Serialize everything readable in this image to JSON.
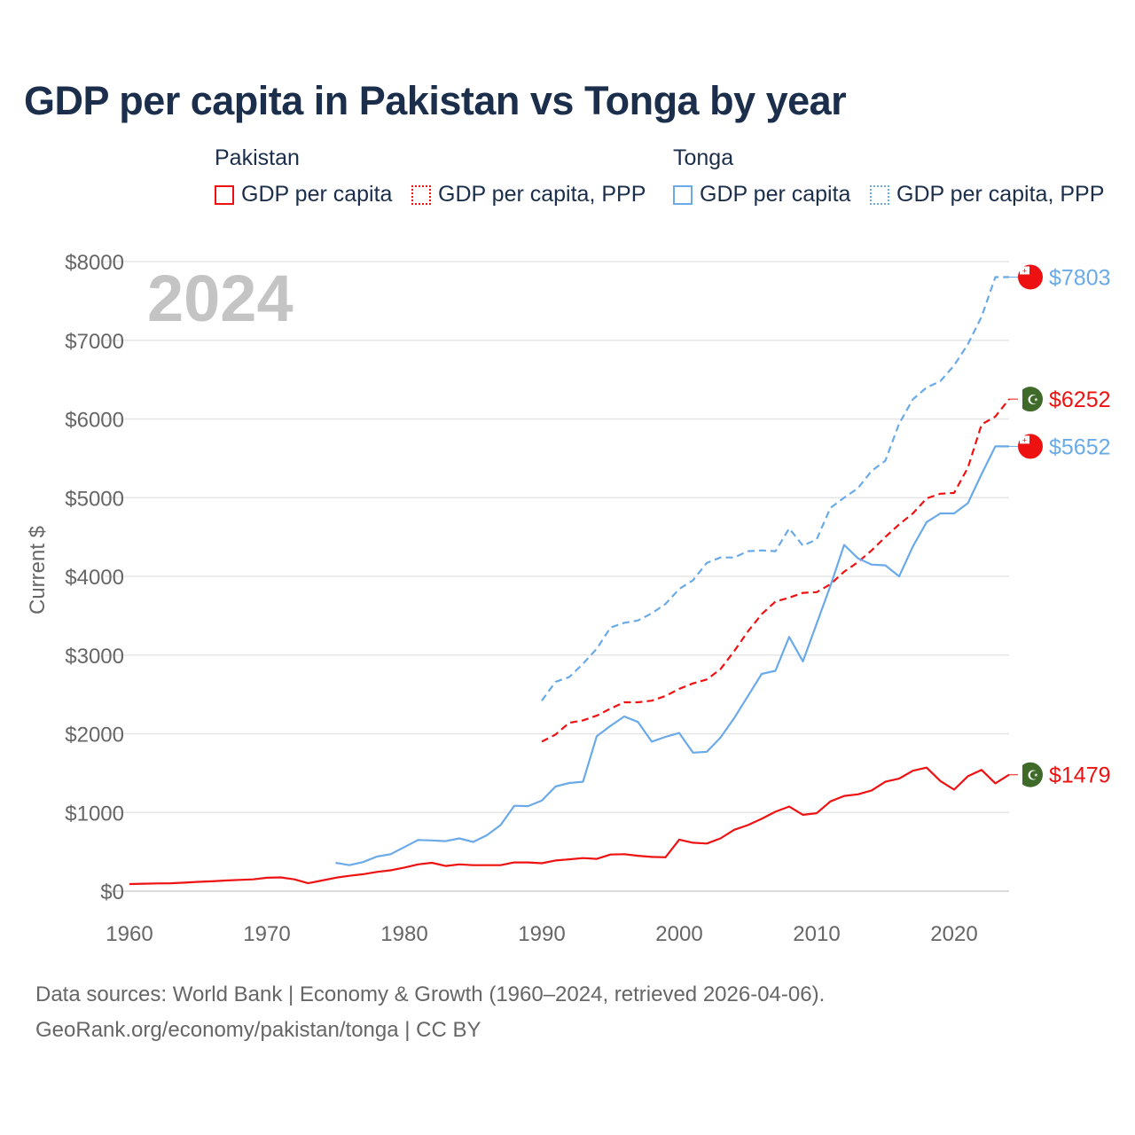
{
  "title": "GDP per capita in Pakistan vs Tonga by year",
  "legend": {
    "groups": [
      {
        "name": "Pakistan",
        "items": [
          "GDP per capita",
          "GDP per capita, PPP"
        ]
      },
      {
        "name": "Tonga",
        "items": [
          "GDP per capita",
          "GDP per capita, PPP"
        ]
      }
    ]
  },
  "year_overlay": "2024",
  "footer": {
    "line1": "Data sources: World Bank | Economy & Growth (1960–2024, retrieved 2026-04-06).",
    "line2": "GeoRank.org/economy/pakistan/tonga | CC BY"
  },
  "colors": {
    "pakistan": "#ee1111",
    "tonga": "#6aaae8",
    "grid": "#e6e6e6",
    "axis_text": "#666666"
  },
  "chart_data": {
    "type": "line",
    "title": "GDP per capita in Pakistan vs Tonga by year",
    "xlabel": "",
    "ylabel": "Current $",
    "xlim": [
      1960,
      2024
    ],
    "ylim": [
      0,
      8000
    ],
    "x_ticks": [
      "1960",
      "1970",
      "1980",
      "1990",
      "2000",
      "2010",
      "2020"
    ],
    "y_ticks": [
      "$0",
      "$1000",
      "$2000",
      "$3000",
      "$4000",
      "$5000",
      "$6000",
      "$7000",
      "$8000"
    ],
    "grid": true,
    "legend_position": "top",
    "series": [
      {
        "name": "Pakistan GDP per capita",
        "color": "#ee1111",
        "dash": "solid",
        "start": 1960,
        "end_label": "$1479",
        "values": [
          90,
          95,
          98,
          100,
          108,
          118,
          125,
          135,
          143,
          150,
          170,
          175,
          150,
          100,
          135,
          170,
          195,
          215,
          245,
          265,
          300,
          340,
          360,
          320,
          340,
          330,
          330,
          330,
          365,
          365,
          355,
          390,
          405,
          420,
          410,
          465,
          470,
          450,
          435,
          430,
          655,
          615,
          605,
          670,
          780,
          840,
          920,
          1010,
          1075,
          970,
          990,
          1140,
          1210,
          1230,
          1280,
          1390,
          1430,
          1530,
          1570,
          1400,
          1290,
          1460,
          1540,
          1370,
          1479
        ]
      },
      {
        "name": "Pakistan GDP per capita, PPP",
        "color": "#ee1111",
        "dash": "dashed",
        "start": 1990,
        "end_label": "$6252",
        "values": [
          1900,
          1990,
          2140,
          2170,
          2230,
          2320,
          2400,
          2400,
          2420,
          2480,
          2570,
          2640,
          2690,
          2820,
          3050,
          3300,
          3520,
          3680,
          3730,
          3790,
          3800,
          3900,
          4060,
          4180,
          4330,
          4500,
          4660,
          4800,
          4990,
          5050,
          5060,
          5380,
          5930,
          6030,
          6252
        ]
      },
      {
        "name": "Tonga GDP per capita",
        "color": "#6aaae8",
        "dash": "solid",
        "start": 1975,
        "end_label": "$5652",
        "values": [
          360,
          330,
          370,
          440,
          470,
          560,
          650,
          645,
          635,
          670,
          625,
          710,
          840,
          1085,
          1080,
          1150,
          1330,
          1375,
          1390,
          1970,
          2100,
          2220,
          2150,
          1900,
          1960,
          2010,
          1760,
          1770,
          1950,
          2200,
          2480,
          2760,
          2800,
          3230,
          2920,
          3400,
          3880,
          4400,
          4230,
          4150,
          4140,
          4000,
          4380,
          4690,
          4800,
          4800,
          4930,
          5300,
          5652,
          5652
        ]
      },
      {
        "name": "Tonga GDP per capita, PPP",
        "color": "#6aaae8",
        "dash": "dashed",
        "start": 1990,
        "end_label": "$7803",
        "values": [
          2420,
          2660,
          2720,
          2890,
          3080,
          3350,
          3410,
          3440,
          3530,
          3650,
          3840,
          3950,
          4170,
          4240,
          4240,
          4320,
          4330,
          4320,
          4610,
          4390,
          4470,
          4870,
          5000,
          5120,
          5340,
          5470,
          5940,
          6250,
          6400,
          6480,
          6680,
          6950,
          7300,
          7803,
          7803
        ]
      }
    ]
  }
}
